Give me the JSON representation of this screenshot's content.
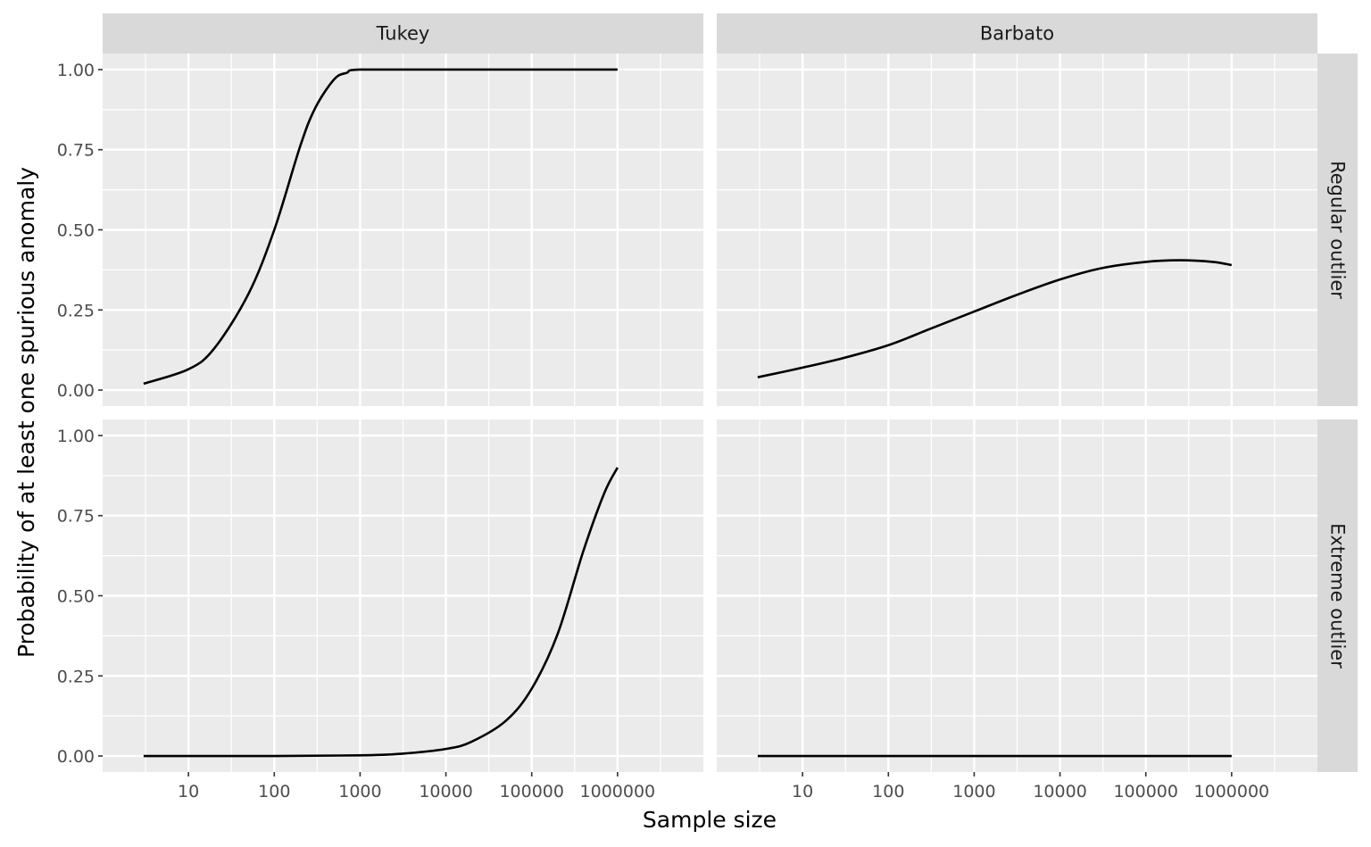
{
  "chart_data": {
    "type": "line",
    "xlabel": "Sample size",
    "ylabel": "Probability of at least one spurious anomaly",
    "x_scale": "log10",
    "xlim": [
      1,
      10000000
    ],
    "ylim": [
      -0.05,
      1.05
    ],
    "x_ticks": [
      10,
      100,
      1000,
      10000,
      100000,
      1000000
    ],
    "x_tick_labels": [
      "10",
      "100",
      "1000",
      "10000",
      "100000",
      "1000000"
    ],
    "y_ticks": [
      0,
      0.25,
      0.5,
      0.75,
      1
    ],
    "y_tick_labels": [
      "0.00",
      "0.25",
      "0.50",
      "0.75",
      "1.00"
    ],
    "grid": true,
    "legend": "none",
    "line_color": "#000000",
    "facet_columns": [
      "Tukey",
      "Barbato"
    ],
    "facet_rows": [
      "Regular outlier",
      "Extreme outlier"
    ],
    "panels": [
      {
        "column": "Tukey",
        "row": "Regular outlier",
        "x": [
          3,
          10,
          20,
          50,
          100,
          200,
          300,
          500,
          700,
          1000,
          10000,
          100000,
          1000000
        ],
        "y": [
          0.02,
          0.065,
          0.13,
          0.3,
          0.5,
          0.76,
          0.88,
          0.97,
          0.99,
          1.0,
          1.0,
          1.0,
          1.0
        ]
      },
      {
        "column": "Barbato",
        "row": "Regular outlier",
        "x": [
          3,
          10,
          30,
          100,
          300,
          1000,
          3000,
          10000,
          30000,
          100000,
          250000,
          600000,
          1000000
        ],
        "y": [
          0.04,
          0.07,
          0.1,
          0.14,
          0.19,
          0.245,
          0.295,
          0.345,
          0.38,
          0.4,
          0.405,
          0.4,
          0.39
        ]
      },
      {
        "column": "Tukey",
        "row": "Extreme outlier",
        "x": [
          3,
          100,
          1000,
          3000,
          10000,
          20000,
          50000,
          100000,
          200000,
          400000,
          700000,
          1000000
        ],
        "y": [
          0.0,
          0.0,
          0.002,
          0.007,
          0.022,
          0.045,
          0.11,
          0.21,
          0.38,
          0.64,
          0.82,
          0.9
        ]
      },
      {
        "column": "Barbato",
        "row": "Extreme outlier",
        "x": [
          3,
          1000,
          1000000
        ],
        "y": [
          0.0,
          0.0,
          0.0
        ]
      }
    ]
  }
}
